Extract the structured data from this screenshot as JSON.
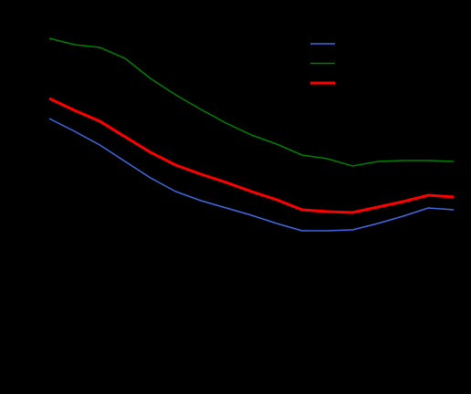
{
  "chart_data": {
    "type": "line",
    "categories": [
      null,
      null,
      null,
      null,
      null,
      null,
      null,
      null,
      null,
      null,
      null,
      null,
      null,
      null,
      null,
      null,
      null
    ],
    "series": [
      {
        "color": "#4169e1",
        "width": 1.5,
        "values": [
          302,
          288,
          273,
          255,
          237,
          222,
          212,
          204,
          196,
          187,
          179,
          179,
          180,
          187,
          195,
          204,
          202
        ]
      },
      {
        "color": "#008000",
        "width": 1.5,
        "values": [
          390,
          383,
          380,
          368,
          346,
          328,
          312,
          297,
          284,
          274,
          262,
          258,
          250,
          255,
          256,
          256,
          255
        ]
      },
      {
        "color": "#ff0000",
        "width": 3,
        "values": [
          324,
          311,
          299,
          282,
          265,
          251,
          241,
          232,
          222,
          213,
          202,
          200,
          199,
          205,
          211,
          218,
          216
        ]
      }
    ],
    "ylim": [
      0,
      432
    ],
    "legend": "upper-right"
  }
}
